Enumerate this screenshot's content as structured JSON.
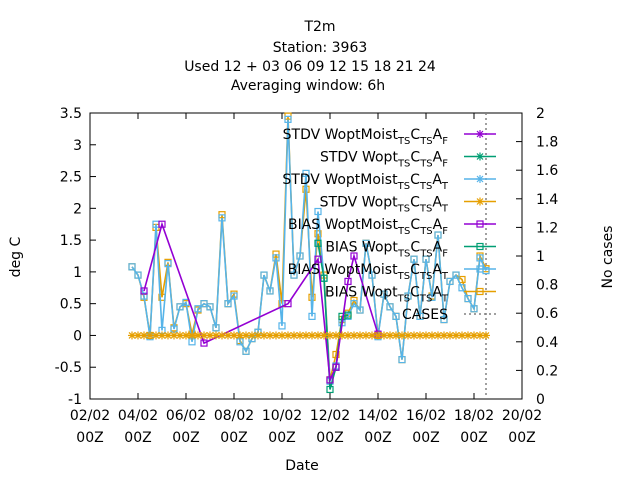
{
  "chart_data": {
    "type": "line",
    "title_lines": [
      "T2m",
      "Station:     3963",
      "Used  12 + 03 06 09 12 15 18 21 24",
      "Averaging window:  6h"
    ],
    "xlabel": "Date",
    "ylabel": "deg C",
    "y2label": "No cases",
    "xlim": [
      0,
      18
    ],
    "ylim": [
      -1,
      3.5
    ],
    "y2lim": [
      0,
      2
    ],
    "x_ticks": [
      {
        "x": 0,
        "label": [
          "02/02",
          "00Z"
        ]
      },
      {
        "x": 2,
        "label": [
          "04/02",
          "00Z"
        ]
      },
      {
        "x": 4,
        "label": [
          "06/02",
          "00Z"
        ]
      },
      {
        "x": 6,
        "label": [
          "08/02",
          "00Z"
        ]
      },
      {
        "x": 8,
        "label": [
          "10/02",
          "00Z"
        ]
      },
      {
        "x": 10,
        "label": [
          "12/02",
          "00Z"
        ]
      },
      {
        "x": 12,
        "label": [
          "14/02",
          "00Z"
        ]
      },
      {
        "x": 14,
        "label": [
          "16/02",
          "00Z"
        ]
      },
      {
        "x": 16,
        "label": [
          "18/02",
          "00Z"
        ]
      },
      {
        "x": 18,
        "label": [
          "20/02",
          "00Z"
        ]
      }
    ],
    "y_ticks": [
      "-1",
      "-0.5",
      "0",
      "0.5",
      "1",
      "1.5",
      "2",
      "2.5",
      "3",
      "3.5"
    ],
    "y2_ticks": [
      "0",
      "0.2",
      "0.4",
      "0.6",
      "0.8",
      "1",
      "1.2",
      "1.4",
      "1.6",
      "1.8",
      "2"
    ],
    "legend": {
      "position": "top-right",
      "entries": [
        {
          "prefix": "STDV WoptMoist",
          "parts": [
            [
              "TS",
              true
            ],
            [
              "C",
              false
            ],
            [
              "TS",
              true
            ],
            [
              "A",
              false
            ],
            [
              "F",
              true
            ]
          ],
          "color": "#9400d3",
          "marker": "star"
        },
        {
          "prefix": "STDV Wopt",
          "parts": [
            [
              "TS",
              true
            ],
            [
              "C",
              false
            ],
            [
              "TS",
              true
            ],
            [
              "A",
              false
            ],
            [
              "F",
              true
            ]
          ],
          "color": "#009e73",
          "marker": "star"
        },
        {
          "prefix": "STDV WoptMoist",
          "parts": [
            [
              "TS",
              true
            ],
            [
              "C",
              false
            ],
            [
              "TS",
              true
            ],
            [
              "A",
              false
            ],
            [
              "T",
              true
            ]
          ],
          "color": "#56b4e9",
          "marker": "star"
        },
        {
          "prefix": "STDV Wopt",
          "parts": [
            [
              "TS",
              true
            ],
            [
              "C",
              false
            ],
            [
              "TS",
              true
            ],
            [
              "A",
              false
            ],
            [
              "T",
              true
            ]
          ],
          "color": "#e69f00",
          "marker": "star"
        },
        {
          "prefix": "BIAS WoptMoist",
          "parts": [
            [
              "TS",
              true
            ],
            [
              "C",
              false
            ],
            [
              "TS",
              true
            ],
            [
              "A",
              false
            ],
            [
              "F",
              true
            ]
          ],
          "color": "#9400d3",
          "marker": "square"
        },
        {
          "prefix": "BIAS Wopt",
          "parts": [
            [
              "TS",
              true
            ],
            [
              "C",
              false
            ],
            [
              "TS",
              true
            ],
            [
              "A",
              false
            ],
            [
              "F",
              true
            ]
          ],
          "color": "#009e73",
          "marker": "square"
        },
        {
          "prefix": "BIAS WoptMoist",
          "parts": [
            [
              "TS",
              true
            ],
            [
              "C",
              false
            ],
            [
              "TS",
              true
            ],
            [
              "A",
              false
            ],
            [
              "T",
              true
            ]
          ],
          "color": "#56b4e9",
          "marker": "square"
        },
        {
          "prefix": "BIAS Wopt",
          "parts": [
            [
              "TS",
              true
            ],
            [
              "C",
              false
            ],
            [
              "TS",
              true
            ],
            [
              "A",
              false
            ],
            [
              "T",
              true
            ]
          ],
          "color": "#e69f00",
          "marker": "square"
        },
        {
          "prefix": "CASES",
          "parts": [],
          "color": "#808080",
          "marker": "dash"
        }
      ]
    },
    "series": [
      {
        "name": "BIAS Wopt TSCTSAT",
        "color": "#e69f00",
        "marker": "square",
        "x": [
          1.75,
          2.0,
          2.25,
          2.5,
          2.75,
          3.0,
          3.25,
          3.5,
          3.75,
          4.0,
          4.25,
          4.5,
          4.75,
          5.0,
          5.25,
          5.5,
          5.75,
          6.0,
          6.25,
          6.5,
          6.75,
          7.0,
          7.25,
          7.5,
          7.75,
          8.0,
          8.25,
          8.5,
          8.75,
          9.0,
          9.25,
          9.5,
          9.75,
          10.0,
          10.25,
          10.5,
          10.75,
          11.0,
          11.25,
          11.5,
          11.75,
          12.0,
          12.25,
          12.5,
          12.75,
          13.0,
          13.25,
          13.5,
          13.75,
          14.0,
          14.25,
          14.5,
          14.75,
          15.0,
          15.25,
          15.5,
          15.75,
          16.0,
          16.25,
          16.5
        ],
        "y": [
          1.08,
          0.95,
          0.6,
          0.0,
          1.7,
          0.6,
          1.15,
          0.12,
          0.45,
          0.5,
          0.02,
          0.4,
          0.5,
          0.45,
          0.12,
          1.9,
          0.5,
          0.65,
          -0.08,
          -0.25,
          -0.05,
          0.05,
          0.95,
          0.7,
          1.28,
          0.5,
          3.45,
          0.95,
          1.25,
          2.3,
          0.6,
          1.6,
          0.95,
          -0.7,
          -0.3,
          0.25,
          0.35,
          0.55,
          0.4,
          1.45,
          0.95,
          0.0,
          0.65,
          0.45,
          0.3,
          -0.38,
          0.62,
          1.2,
          0.3,
          1.2,
          0.62,
          1.58,
          0.25,
          0.85,
          0.95,
          0.88,
          0.58,
          0.42,
          1.25,
          1.05
        ]
      },
      {
        "name": "BIAS WoptMoist TSCTSAT",
        "color": "#56b4e9",
        "marker": "square",
        "x": [
          1.75,
          2.0,
          2.25,
          2.5,
          2.75,
          3.0,
          3.25,
          3.5,
          3.75,
          4.0,
          4.25,
          4.5,
          4.75,
          5.0,
          5.25,
          5.5,
          5.75,
          6.0,
          6.25,
          6.5,
          6.75,
          7.0,
          7.25,
          7.5,
          7.75,
          8.0,
          8.25,
          8.5,
          8.75,
          9.0,
          9.25,
          9.5,
          9.75,
          10.0,
          10.25,
          10.5,
          10.75,
          11.0,
          11.25,
          11.5,
          11.75,
          12.0,
          12.25,
          12.5,
          12.75,
          13.0,
          13.25,
          13.5,
          13.75,
          14.0,
          14.25,
          14.5,
          14.75,
          15.0,
          15.25,
          15.5,
          15.75,
          16.0,
          16.25,
          16.5
        ],
        "y": [
          1.08,
          0.95,
          0.62,
          -0.02,
          1.75,
          0.08,
          1.13,
          0.1,
          0.45,
          0.52,
          -0.1,
          0.42,
          0.5,
          0.45,
          0.12,
          1.85,
          0.5,
          0.62,
          -0.1,
          -0.25,
          -0.05,
          0.05,
          0.95,
          0.7,
          1.22,
          0.15,
          3.4,
          0.95,
          1.25,
          2.55,
          0.3,
          1.95,
          0.9,
          -0.72,
          -0.48,
          0.2,
          0.3,
          0.5,
          0.4,
          1.45,
          0.95,
          -0.02,
          0.65,
          0.45,
          0.3,
          -0.38,
          0.62,
          1.2,
          0.3,
          1.2,
          0.6,
          1.58,
          0.25,
          0.85,
          0.95,
          0.75,
          0.58,
          0.42,
          1.22,
          1.02
        ]
      },
      {
        "name": "BIAS Wopt TSCTSAF",
        "color": "#009e73",
        "marker": "square",
        "x": [
          9.5,
          9.75,
          10.0,
          10.25,
          10.5,
          10.75
        ],
        "y": [
          1.45,
          0.9,
          -0.85,
          -0.5,
          0.3,
          0.32
        ]
      },
      {
        "name": "BIAS WoptMoist TSCTSAF",
        "color": "#9400d3",
        "marker": "square",
        "x": [
          2.25,
          3.0,
          4.75,
          8.25,
          9.5,
          10.0,
          10.25,
          10.75,
          11.0,
          12.0
        ],
        "y": [
          0.7,
          1.75,
          -0.12,
          0.5,
          1.2,
          -0.7,
          -0.5,
          0.85,
          1.25,
          0.02
        ]
      },
      {
        "name": "CASES",
        "color": "#e69f00",
        "marker": "star",
        "x": [
          1.75,
          2.0,
          2.25,
          2.5,
          2.75,
          3.0,
          3.25,
          3.5,
          3.75,
          4.0,
          4.25,
          4.5,
          4.75,
          5.0,
          5.25,
          5.5,
          5.75,
          6.0,
          6.25,
          6.5,
          6.75,
          7.0,
          7.25,
          7.5,
          7.75,
          8.0,
          8.25,
          8.5,
          8.75,
          9.0,
          9.25,
          9.5,
          9.75,
          10.0,
          10.25,
          10.5,
          10.75,
          11.0,
          11.25,
          11.5,
          11.75,
          12.0,
          12.25,
          12.5,
          12.75,
          13.0,
          13.25,
          13.5,
          13.75,
          14.0,
          14.25,
          14.5,
          14.75,
          15.0,
          15.25,
          15.5,
          15.75,
          16.0,
          16.25,
          16.5
        ],
        "y": [
          0.0,
          0.0,
          0.0,
          0.0,
          0.0,
          0.0,
          0.0,
          0.0,
          0.0,
          0.0,
          0.0,
          0.0,
          0.0,
          0.0,
          0.0,
          0.0,
          0.0,
          0.0,
          0.0,
          0.0,
          0.0,
          0.0,
          0.0,
          0.0,
          0.0,
          0.0,
          0.0,
          0.0,
          0.0,
          0.0,
          0.0,
          0.0,
          0.0,
          0.0,
          0.0,
          0.0,
          0.0,
          0.0,
          0.0,
          0.0,
          0.0,
          0.0,
          0.0,
          0.0,
          0.0,
          0.0,
          0.0,
          0.0,
          0.0,
          0.0,
          0.0,
          0.0,
          0.0,
          0.0,
          0.0,
          0.0,
          0.0,
          0.0,
          0.0,
          0.0
        ]
      }
    ],
    "cases_marker_x": 16.5
  }
}
